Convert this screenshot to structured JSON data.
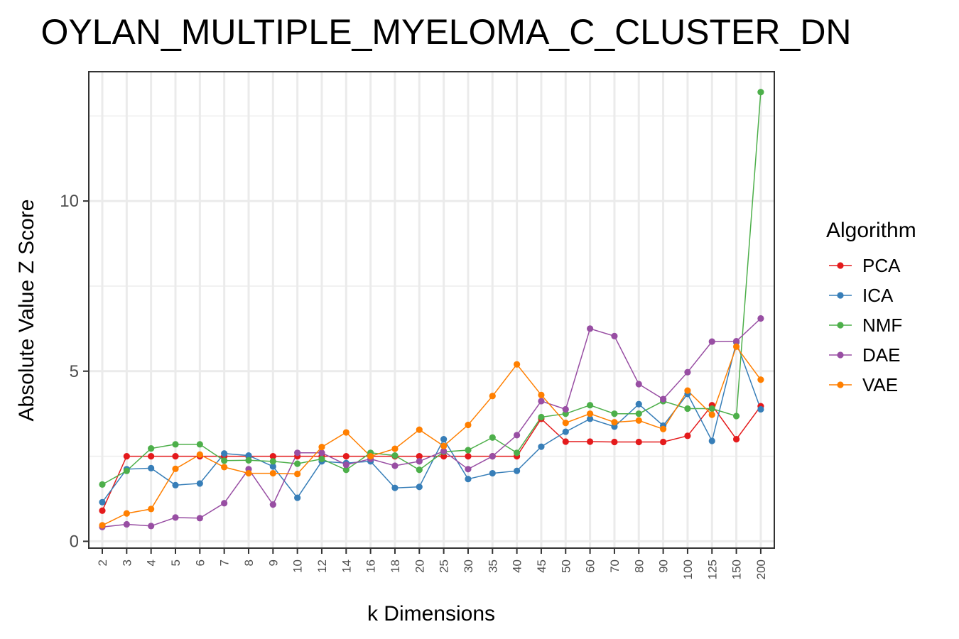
{
  "chart_data": {
    "type": "line",
    "title": "OYLAN_MULTIPLE_MYELOMA_C_CLUSTER_DN",
    "xlabel": "k Dimensions",
    "ylabel": "Absolute Value Z Score",
    "categories": [
      "2",
      "3",
      "4",
      "5",
      "6",
      "7",
      "8",
      "9",
      "10",
      "12",
      "14",
      "16",
      "18",
      "20",
      "25",
      "30",
      "35",
      "40",
      "45",
      "50",
      "60",
      "70",
      "80",
      "90",
      "100",
      "125",
      "150",
      "200"
    ],
    "ylim": [
      -0.2,
      13.8
    ],
    "yticks": [
      0,
      5,
      10
    ],
    "grid": true,
    "legend": {
      "title": "Algorithm",
      "position": "right"
    },
    "series": [
      {
        "name": "PCA",
        "color": "#E41A1C",
        "values": [
          0.9,
          2.5,
          2.5,
          2.5,
          2.5,
          2.5,
          2.5,
          2.5,
          2.5,
          2.5,
          2.5,
          2.5,
          2.5,
          2.5,
          2.5,
          2.5,
          2.5,
          2.5,
          3.6,
          2.93,
          2.93,
          2.92,
          2.92,
          2.92,
          3.1,
          4.0,
          3.0,
          3.97
        ]
      },
      {
        "name": "ICA",
        "color": "#377EB8",
        "values": [
          1.15,
          2.12,
          2.15,
          1.65,
          1.7,
          2.58,
          2.52,
          2.2,
          1.28,
          2.35,
          2.3,
          2.35,
          1.57,
          1.6,
          3.0,
          1.83,
          2.0,
          2.07,
          2.78,
          3.22,
          3.6,
          3.37,
          4.03,
          3.4,
          4.33,
          2.95,
          5.85,
          3.88
        ]
      },
      {
        "name": "NMF",
        "color": "#4DAF4A",
        "values": [
          1.67,
          2.07,
          2.73,
          2.85,
          2.85,
          2.37,
          2.38,
          2.35,
          2.28,
          2.42,
          2.1,
          2.6,
          2.52,
          2.1,
          2.63,
          2.68,
          3.05,
          2.6,
          3.65,
          3.75,
          4.0,
          3.75,
          3.75,
          4.12,
          3.9,
          3.9,
          3.68,
          13.2
        ]
      },
      {
        "name": "DAE",
        "color": "#984EA3",
        "values": [
          0.42,
          0.5,
          0.45,
          0.7,
          0.68,
          1.12,
          2.12,
          1.08,
          2.6,
          2.6,
          2.25,
          2.42,
          2.22,
          2.35,
          2.65,
          2.12,
          2.5,
          3.12,
          4.12,
          3.88,
          6.25,
          6.03,
          4.62,
          4.18,
          4.97,
          5.87,
          5.88,
          6.55
        ]
      },
      {
        "name": "VAE",
        "color": "#FF7F00",
        "values": [
          0.47,
          0.82,
          0.95,
          2.13,
          2.55,
          2.18,
          2.0,
          2.0,
          1.98,
          2.77,
          3.2,
          2.5,
          2.72,
          3.28,
          2.8,
          3.42,
          4.27,
          5.2,
          4.3,
          3.48,
          3.75,
          3.5,
          3.55,
          3.3,
          4.43,
          3.72,
          5.72,
          4.75
        ]
      }
    ]
  }
}
